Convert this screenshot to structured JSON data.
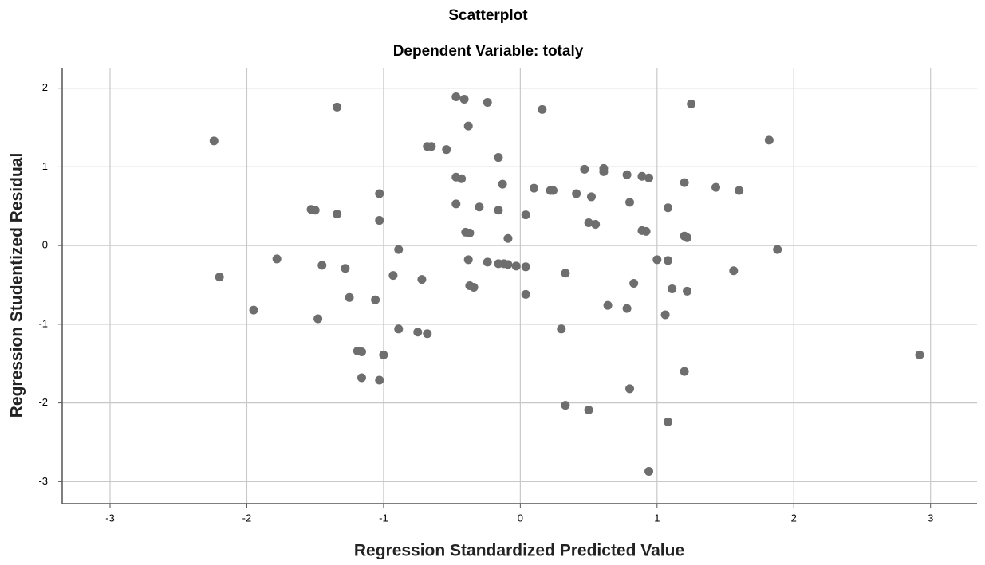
{
  "chart_data": {
    "type": "scatter",
    "title": "Scatterplot",
    "subtitle": "Dependent Variable: totaly",
    "x_label": "Regression Standardized Predicted Value",
    "y_label": "Regression Studentized Residual",
    "color": "#6e6e6e",
    "grid": true,
    "xlim": [
      -3.35,
      3.34
    ],
    "ylim": [
      -3.28,
      2.26
    ],
    "xticks": [
      -3,
      -2,
      -1,
      0,
      1,
      2,
      3
    ],
    "yticks": [
      -3,
      -2,
      -1,
      0,
      1,
      2
    ],
    "x": [
      -2.24,
      -2.2,
      -1.95,
      -1.78,
      -1.53,
      -1.5,
      -1.45,
      -1.48,
      -1.34,
      -1.34,
      -1.28,
      -1.25,
      -1.19,
      -1.16,
      -1.16,
      -1.06,
      -1.03,
      -1.03,
      -1.03,
      -1.0,
      -0.93,
      -0.89,
      -0.89,
      -0.75,
      -0.72,
      -0.68,
      -0.68,
      -0.65,
      -0.54,
      -0.47,
      -0.41,
      -0.47,
      -0.43,
      -0.47,
      -0.4,
      -0.37,
      -0.38,
      -0.38,
      -0.37,
      -0.34,
      -0.3,
      -0.24,
      -0.24,
      -0.16,
      -0.16,
      -0.16,
      -0.13,
      -0.12,
      -0.09,
      -0.09,
      -0.03,
      0.04,
      0.04,
      0.04,
      0.1,
      0.16,
      0.22,
      0.24,
      0.3,
      0.33,
      0.33,
      0.41,
      0.47,
      0.5,
      0.5,
      0.52,
      0.55,
      0.61,
      0.61,
      0.64,
      0.78,
      0.78,
      0.8,
      0.8,
      0.83,
      0.89,
      0.89,
      0.92,
      0.94,
      0.94,
      1.0,
      1.06,
      1.08,
      1.08,
      1.08,
      1.11,
      1.2,
      1.2,
      1.22,
      1.2,
      1.22,
      1.25,
      1.43,
      1.56,
      1.6,
      1.82,
      1.88,
      2.92
    ],
    "y": [
      1.33,
      -0.4,
      -0.82,
      -0.17,
      0.46,
      0.45,
      -0.25,
      -0.93,
      1.76,
      0.4,
      -0.29,
      -0.66,
      -1.34,
      -1.35,
      -1.68,
      -0.69,
      0.66,
      0.32,
      -1.71,
      -1.39,
      -0.38,
      -0.05,
      -1.06,
      -1.1,
      -0.43,
      -1.12,
      1.26,
      1.26,
      1.22,
      1.89,
      1.86,
      0.87,
      0.85,
      0.53,
      0.17,
      0.16,
      1.52,
      -0.18,
      -0.51,
      -0.53,
      0.49,
      1.82,
      -0.21,
      1.12,
      -0.23,
      0.45,
      0.78,
      -0.23,
      -0.24,
      0.09,
      -0.26,
      0.39,
      -0.27,
      -0.62,
      0.73,
      1.73,
      0.7,
      0.7,
      -1.06,
      -0.35,
      -2.03,
      0.66,
      0.97,
      0.29,
      -2.09,
      0.62,
      0.27,
      0.94,
      0.98,
      -0.76,
      0.9,
      -0.8,
      0.55,
      -1.82,
      -0.48,
      0.88,
      0.19,
      0.18,
      0.86,
      -2.87,
      -0.18,
      -0.88,
      0.48,
      -0.19,
      -2.24,
      -0.55,
      0.8,
      0.12,
      0.1,
      -1.6,
      -0.58,
      1.8,
      0.74,
      -0.32,
      0.7,
      1.34,
      -0.05,
      -1.39
    ]
  }
}
